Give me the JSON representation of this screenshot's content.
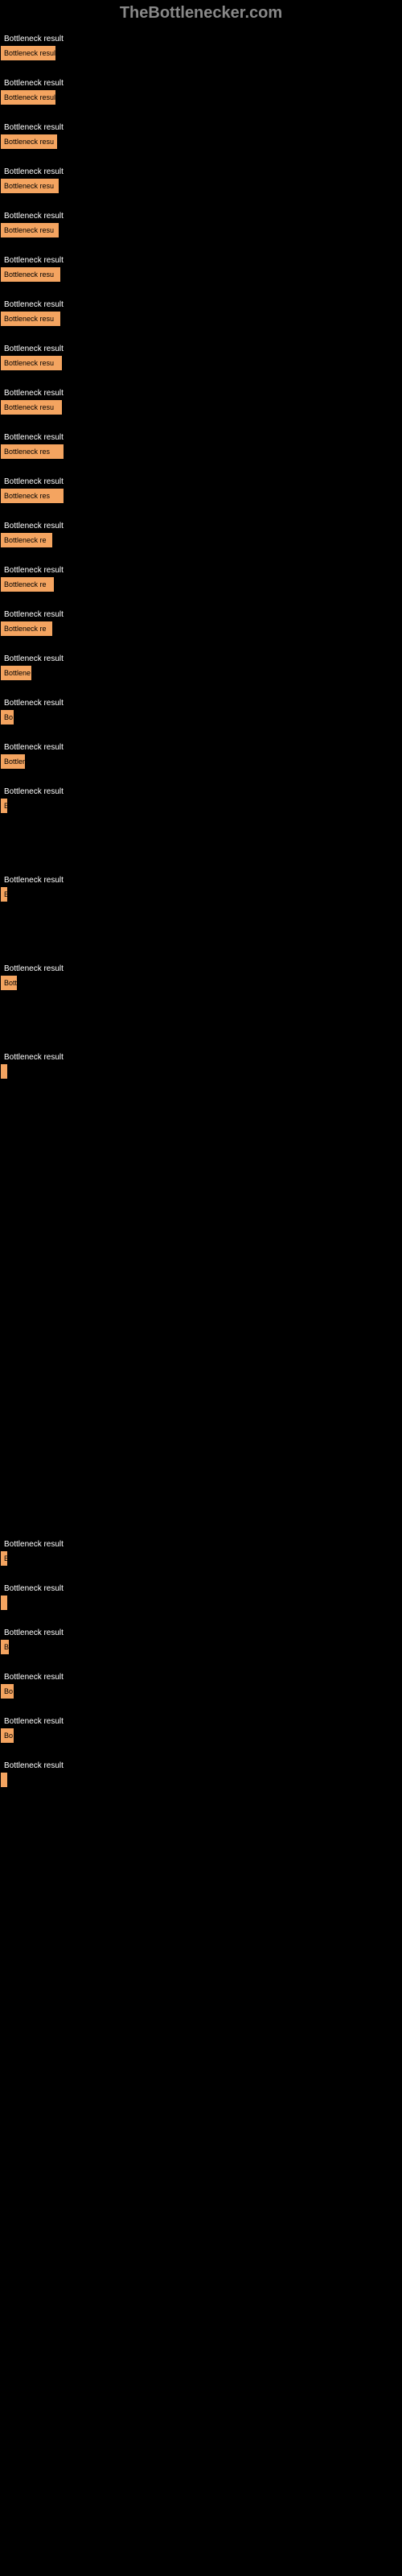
{
  "header": "TheBottlenecker.com",
  "chart": {
    "type": "bar",
    "bar_color": "#f4a460",
    "bar_border_color": "#000000",
    "bar_text_color": "#000000",
    "label_color": "#ffffff",
    "background_color": "#000000",
    "header_color": "#888888",
    "bars": [
      {
        "label": "Bottleneck result",
        "width": 70,
        "text": "Bottleneck resul"
      },
      {
        "label": "Bottleneck result",
        "width": 70,
        "text": "Bottleneck resul"
      },
      {
        "label": "Bottleneck result",
        "width": 72,
        "text": "Bottleneck resu"
      },
      {
        "label": "Bottleneck result",
        "width": 74,
        "text": "Bottleneck resu"
      },
      {
        "label": "Bottleneck result",
        "width": 74,
        "text": "Bottleneck resu"
      },
      {
        "label": "Bottleneck result",
        "width": 76,
        "text": "Bottleneck resu"
      },
      {
        "label": "Bottleneck result",
        "width": 76,
        "text": "Bottleneck resu"
      },
      {
        "label": "Bottleneck result",
        "width": 78,
        "text": "Bottleneck resu"
      },
      {
        "label": "Bottleneck result",
        "width": 78,
        "text": "Bottleneck resu"
      },
      {
        "label": "Bottleneck result",
        "width": 80,
        "text": "Bottleneck res"
      },
      {
        "label": "Bottleneck result",
        "width": 80,
        "text": "Bottleneck res"
      },
      {
        "label": "Bottleneck result",
        "width": 66,
        "text": "Bottleneck re"
      },
      {
        "label": "Bottleneck result",
        "width": 68,
        "text": "Bottleneck re"
      },
      {
        "label": "Bottleneck result",
        "width": 66,
        "text": "Bottleneck re"
      },
      {
        "label": "Bottleneck result",
        "width": 40,
        "text": "Bottlene"
      },
      {
        "label": "Bottleneck result",
        "width": 18,
        "text": "Bo"
      },
      {
        "label": "Bottleneck result",
        "width": 32,
        "text": "Bottler"
      },
      {
        "label": "Bottleneck result",
        "width": 10,
        "text": "B"
      },
      {
        "label": "",
        "width": 0,
        "text": ""
      },
      {
        "label": "Bottleneck result",
        "width": 10,
        "text": "B"
      },
      {
        "label": "",
        "width": 0,
        "text": ""
      },
      {
        "label": "Bottleneck result",
        "width": 22,
        "text": "Bott"
      },
      {
        "label": "",
        "width": 0,
        "text": ""
      },
      {
        "label": "Bottleneck result",
        "width": 6,
        "text": ""
      },
      {
        "label": "",
        "width": 0,
        "text": ""
      },
      {
        "label": "",
        "width": 0,
        "text": ""
      },
      {
        "label": "",
        "width": 0,
        "text": ""
      },
      {
        "label": "",
        "width": 0,
        "text": ""
      },
      {
        "label": "",
        "width": 0,
        "text": ""
      },
      {
        "label": "",
        "width": 0,
        "text": ""
      },
      {
        "label": "",
        "width": 0,
        "text": ""
      },
      {
        "label": "",
        "width": 0,
        "text": ""
      },
      {
        "label": "",
        "width": 0,
        "text": ""
      },
      {
        "label": "",
        "width": 0,
        "text": ""
      },
      {
        "label": "Bottleneck result",
        "width": 10,
        "text": "B"
      },
      {
        "label": "Bottleneck result",
        "width": 6,
        "text": ""
      },
      {
        "label": "Bottleneck result",
        "width": 12,
        "text": "B"
      },
      {
        "label": "Bottleneck result",
        "width": 18,
        "text": "Bo"
      },
      {
        "label": "Bottleneck result",
        "width": 18,
        "text": "Bo"
      },
      {
        "label": "Bottleneck result",
        "width": 4,
        "text": ""
      }
    ]
  }
}
